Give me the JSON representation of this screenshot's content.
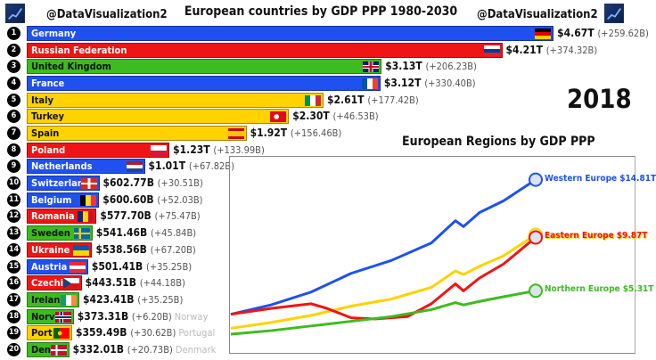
{
  "header": {
    "handle_left": "@DataVisualization2",
    "handle_right": "@DataVisualization2",
    "title": "European countries by GDP PPP 1980-2030",
    "year": "2018"
  },
  "colors": {
    "blue": "#1f50f0",
    "red": "#f01414",
    "green": "#3cbc1e",
    "yellow": "#ffd200"
  },
  "chart_data": [
    {
      "type": "bar",
      "title": "European countries by GDP PPP 1980-2030",
      "year": "2018",
      "unit": "USD billions",
      "bars": [
        {
          "rank": "1",
          "name": "Germany",
          "value": 4670,
          "label": "$4.67T",
          "change": "(+259.62B)",
          "color": "blue",
          "flag": "germany"
        },
        {
          "rank": "2",
          "name": "Russian Federation",
          "value": 4210,
          "label": "$4.21T",
          "change": "(+374.32B)",
          "color": "red",
          "flag": "russia"
        },
        {
          "rank": "3",
          "name": "United Kingdom",
          "value": 3130,
          "label": "$3.13T",
          "change": "(+206.23B)",
          "color": "green",
          "flag": "uk"
        },
        {
          "rank": "4",
          "name": "France",
          "value": 3120,
          "label": "$3.12T",
          "change": "(+330.40B)",
          "color": "blue",
          "flag": "france"
        },
        {
          "rank": "5",
          "name": "Italy",
          "value": 2610,
          "label": "$2.61T",
          "change": "(+177.42B)",
          "color": "yellow",
          "flag": "italy"
        },
        {
          "rank": "6",
          "name": "Turkey",
          "value": 2300,
          "label": "$2.30T",
          "change": "(+46.53B)",
          "color": "yellow",
          "flag": "turkey"
        },
        {
          "rank": "7",
          "name": "Spain",
          "value": 1920,
          "label": "$1.92T",
          "change": "(+156.46B)",
          "color": "yellow",
          "flag": "spain"
        },
        {
          "rank": "8",
          "name": "Poland",
          "value": 1230,
          "label": "$1.23T",
          "change": "(+133.99B)",
          "color": "red",
          "flag": "poland"
        },
        {
          "rank": "9",
          "name": "Netherlands",
          "value": 1010,
          "label": "$1.01T",
          "change": "(+67.82B)",
          "color": "blue",
          "flag": "netherlands"
        },
        {
          "rank": "10",
          "name": "Switzerlan",
          "value": 602.77,
          "label": "$602.77B",
          "change": "(+30.51B)",
          "color": "blue",
          "flag": "switzerland"
        },
        {
          "rank": "11",
          "name": "Belgium",
          "value": 600.6,
          "label": "$600.60B",
          "change": "(+52.03B)",
          "color": "blue",
          "flag": "belgium"
        },
        {
          "rank": "12",
          "name": "Romania",
          "value": 577.7,
          "label": "$577.70B",
          "change": "(+75.47B)",
          "color": "red",
          "flag": "romania"
        },
        {
          "rank": "13",
          "name": "Sweden",
          "value": 541.46,
          "label": "$541.46B",
          "change": "(+45.84B)",
          "color": "green",
          "flag": "sweden"
        },
        {
          "rank": "14",
          "name": "Ukraine",
          "value": 538.56,
          "label": "$538.56B",
          "change": "(+67.20B)",
          "color": "red",
          "flag": "ukraine"
        },
        {
          "rank": "15",
          "name": "Austria",
          "value": 501.41,
          "label": "$501.41B",
          "change": "(+35.25B)",
          "color": "blue",
          "flag": "austria"
        },
        {
          "rank": "16",
          "name": "Czechi",
          "value": 443.51,
          "label": "$443.51B",
          "change": "(+44.18B)",
          "color": "red",
          "flag": "czechia"
        },
        {
          "rank": "17",
          "name": "Irelan",
          "value": 423.41,
          "label": "$423.41B",
          "change": "(+35.25B)",
          "color": "green",
          "flag": "ireland"
        },
        {
          "rank": "18",
          "name": "Norv",
          "value": 373.31,
          "label": "$373.31B",
          "change": "(+6.20B)",
          "ghost": "Norway",
          "color": "green",
          "flag": "norway"
        },
        {
          "rank": "19",
          "name": "Port",
          "value": 359.49,
          "label": "$359.49B",
          "change": "(+30.62B)",
          "ghost": "Portugal",
          "color": "yellow",
          "flag": "portugal"
        },
        {
          "rank": "20",
          "name": "Den",
          "value": 332.01,
          "label": "$332.01B",
          "change": "(+20.73B)",
          "ghost": "Denmark",
          "color": "green",
          "flag": "denmark"
        }
      ]
    },
    {
      "type": "line",
      "title": "European Regions by GDP PPP",
      "ylim": [
        0,
        16
      ],
      "xlim": [
        1980,
        2030
      ],
      "grid": false,
      "series": [
        {
          "name": "Western Europe",
          "end_label": "$14.81T",
          "color": "blue",
          "x": [
            1980,
            1985,
            1990,
            1995,
            2000,
            2005,
            2008,
            2009,
            2011,
            2014,
            2018
          ],
          "y": [
            3.3,
            4.1,
            5.2,
            6.8,
            7.9,
            9.4,
            11.3,
            10.8,
            12.0,
            13.0,
            14.81
          ]
        },
        {
          "name": "",
          "end_label": "",
          "color": "yellow",
          "x": [
            1980,
            1985,
            1990,
            1995,
            2000,
            2005,
            2008,
            2009,
            2011,
            2014,
            2018
          ],
          "y": [
            2.1,
            2.6,
            3.2,
            4.0,
            4.6,
            5.6,
            7.0,
            6.7,
            7.4,
            8.3,
            10.1
          ]
        },
        {
          "name": "Eastern Europe",
          "end_label": "$9.87T",
          "color": "red",
          "x": [
            1980,
            1985,
            1990,
            1992,
            1995,
            1998,
            2002,
            2005,
            2008,
            2009,
            2011,
            2014,
            2018
          ],
          "y": [
            3.3,
            3.8,
            4.2,
            3.8,
            3.0,
            2.9,
            3.1,
            4.2,
            5.9,
            5.3,
            6.4,
            7.6,
            9.87
          ]
        },
        {
          "name": "Northern Europe",
          "end_label": "$5.31T",
          "color": "green",
          "x": [
            1980,
            1985,
            1990,
            1995,
            2000,
            2005,
            2008,
            2009,
            2011,
            2014,
            2018
          ],
          "y": [
            1.6,
            1.9,
            2.3,
            2.7,
            3.1,
            3.7,
            4.3,
            4.1,
            4.4,
            4.8,
            5.31
          ]
        }
      ]
    }
  ]
}
